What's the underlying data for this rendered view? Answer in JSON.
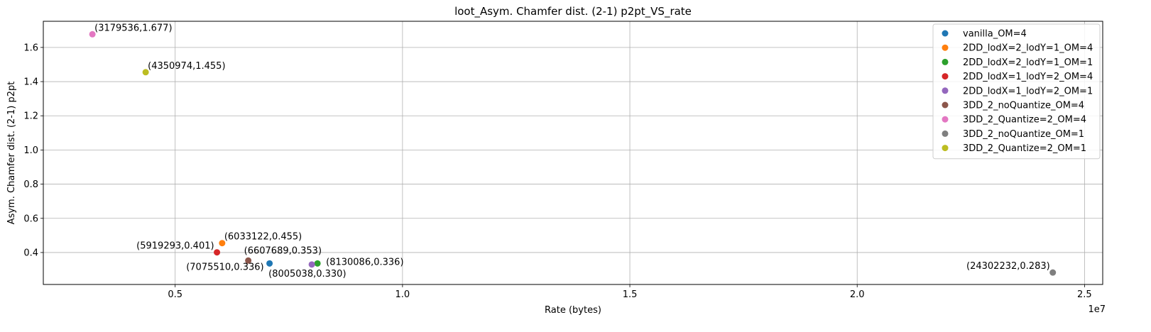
{
  "chart_data": {
    "type": "scatter",
    "title": "loot_Asym. Chamfer dist. (2-1) p2pt_VS_rate",
    "xlabel": "Rate (bytes)",
    "ylabel": "Asym. Chamfer dist. (2-1) p2pt",
    "x_offset_label": "1e7",
    "xlim": [
      2100000,
      25400000
    ],
    "ylim": [
      0.213,
      1.753
    ],
    "xticks": [
      {
        "value": 5000000,
        "label": "0.5"
      },
      {
        "value": 10000000,
        "label": "1.0"
      },
      {
        "value": 15000000,
        "label": "1.5"
      },
      {
        "value": 20000000,
        "label": "2.0"
      },
      {
        "value": 25000000,
        "label": "2.5"
      }
    ],
    "yticks": [
      {
        "value": 0.4,
        "label": "0.4"
      },
      {
        "value": 0.6,
        "label": "0.6"
      },
      {
        "value": 0.8,
        "label": "0.8"
      },
      {
        "value": 1.0,
        "label": "1.0"
      },
      {
        "value": 1.2,
        "label": "1.2"
      },
      {
        "value": 1.4,
        "label": "1.4"
      },
      {
        "value": 1.6,
        "label": "1.6"
      }
    ],
    "grid": true,
    "legend_position": "top-right",
    "series": [
      {
        "name": "vanilla_OM=4",
        "color": "#1f77b4",
        "x": 7075510,
        "y": 0.336,
        "label": "(7075510,0.336)",
        "label_anchor": "end",
        "label_pos": "below-left"
      },
      {
        "name": "2DD_lodX=2_lodY=1_OM=4",
        "color": "#ff7f0e",
        "x": 6033122,
        "y": 0.455,
        "label": "(6033122,0.455)",
        "label_anchor": "start",
        "label_pos": "above-right"
      },
      {
        "name": "2DD_lodX=2_lodY=1_OM=1",
        "color": "#2ca02c",
        "x": 8130086,
        "y": 0.336,
        "label": "(8130086,0.336)",
        "label_anchor": "start",
        "label_pos": "right"
      },
      {
        "name": "2DD_lodX=1_lodY=2_OM=4",
        "color": "#d62728",
        "x": 5919293,
        "y": 0.401,
        "label": "(5919293,0.401)",
        "label_anchor": "end",
        "label_pos": "above-left"
      },
      {
        "name": "2DD_lodX=1_lodY=2_OM=1",
        "color": "#9467bd",
        "x": 8005038,
        "y": 0.33,
        "label": "(8005038,0.330)",
        "label_anchor": "start",
        "label_pos": "below-left-start"
      },
      {
        "name": "3DD_2_noQuantize_OM=4",
        "color": "#8c564b",
        "x": 6607689,
        "y": 0.353,
        "label": "(6607689,0.353)",
        "label_anchor": "start",
        "label_pos": "above-left-start"
      },
      {
        "name": "3DD_2_Quantize=2_OM=4",
        "color": "#e377c2",
        "x": 3179536,
        "y": 1.677,
        "label": "(3179536,1.677)",
        "label_anchor": "start",
        "label_pos": "above-right"
      },
      {
        "name": "3DD_2_noQuantize_OM=1",
        "color": "#7f7f7f",
        "x": 24302232,
        "y": 0.283,
        "label": "(24302232,0.283)",
        "label_anchor": "end",
        "label_pos": "above-left"
      },
      {
        "name": "3DD_2_Quantize=2_OM=1",
        "color": "#bcbd22",
        "x": 4350974,
        "y": 1.455,
        "label": "(4350974,1.455)",
        "label_anchor": "start",
        "label_pos": "above-right"
      }
    ]
  }
}
